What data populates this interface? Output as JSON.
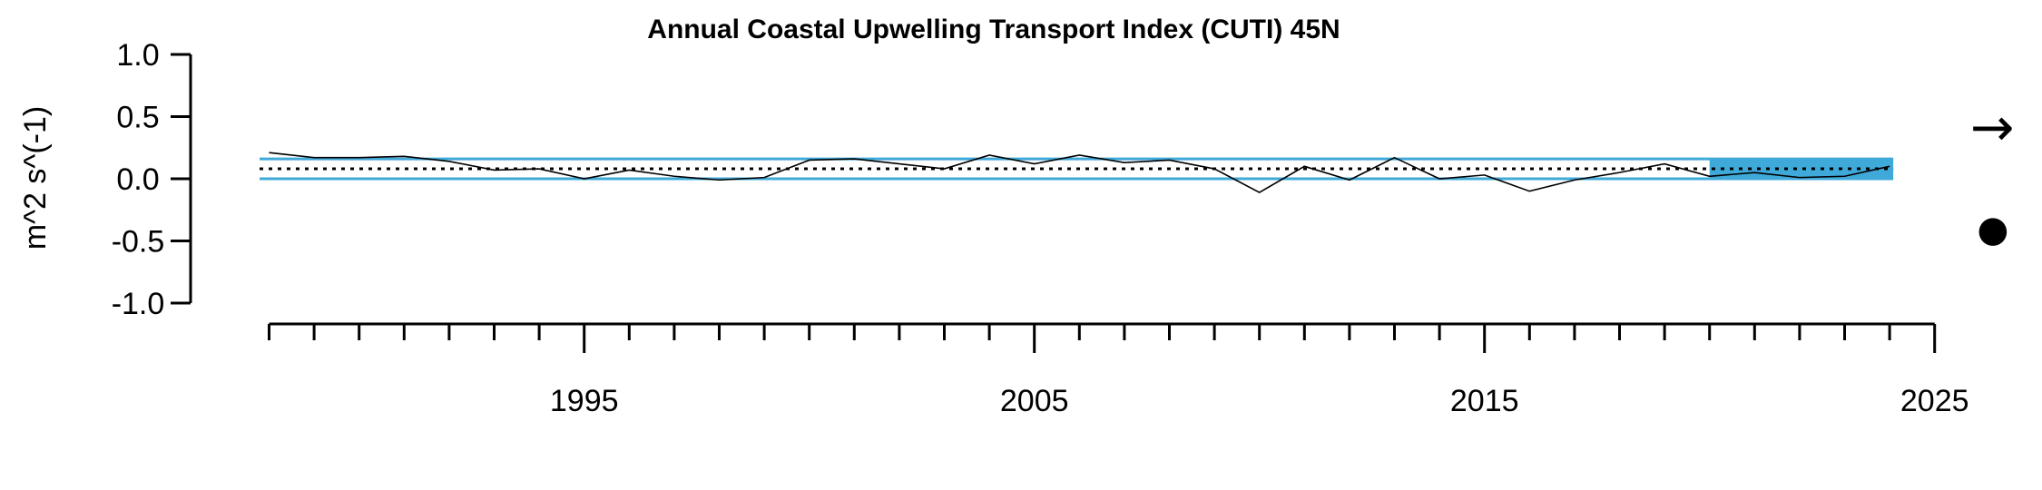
{
  "chart_data": {
    "type": "line",
    "title": "Annual Coastal Upwelling Transport Index (CUTI) 45N",
    "ylabel": "m^2 s^(-1)",
    "xlabel": "",
    "xlim": [
      1988,
      2025
    ],
    "ylim": [
      -1.0,
      1.0
    ],
    "y_ticks": [
      "1.0",
      "0.5",
      "0.0",
      "-0.5",
      "-1.0"
    ],
    "x_tick_labels": [
      "1995",
      "2005",
      "2015",
      "2025"
    ],
    "grid": false,
    "series": [
      {
        "x": [
          1988,
          1989,
          1990,
          1991,
          1992,
          1993,
          1994,
          1995,
          1996,
          1997,
          1998,
          1999,
          2000,
          2001,
          2002,
          2003,
          2004,
          2005,
          2006,
          2007,
          2008,
          2009,
          2010,
          2011,
          2012,
          2013,
          2014,
          2015,
          2016,
          2017,
          2018,
          2019,
          2020,
          2021,
          2022,
          2023,
          2024
        ],
        "values": [
          0.21,
          0.17,
          0.17,
          0.18,
          0.14,
          0.07,
          0.08,
          0.0,
          0.07,
          0.02,
          -0.01,
          0.01,
          0.15,
          0.16,
          0.12,
          0.08,
          0.19,
          0.12,
          0.19,
          0.13,
          0.15,
          0.08,
          -0.11,
          0.1,
          -0.01,
          0.17,
          0.0,
          0.03,
          -0.1,
          -0.01,
          0.05,
          0.12,
          0.02,
          0.05,
          0.01,
          0.02,
          0.1
        ]
      }
    ],
    "mean": 0.08,
    "sd_band": [
      0.0,
      0.16
    ],
    "recent_window": [
      2020,
      2024
    ],
    "trend_symbol": "→",
    "mean_symbol": "●",
    "colors": {
      "line": "#000000",
      "band": "#3fa9d9",
      "recent_fill": "#3fa9d9",
      "mean_line": "#000000"
    }
  }
}
